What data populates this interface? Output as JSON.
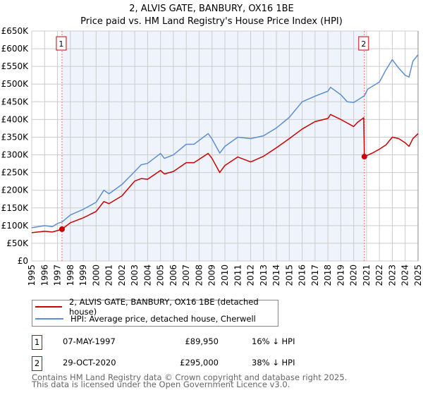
{
  "chart_data": {
    "type": "line",
    "title": "2, ALVIS GATE, BANBURY, OX16 1BE",
    "subtitle": "Price paid vs. HM Land Registry's House Price Index (HPI)",
    "xlim": [
      1995,
      2025
    ],
    "ylim": [
      0,
      650000
    ],
    "x_ticks": [
      "1995",
      "1996",
      "1997",
      "1998",
      "1999",
      "2000",
      "2001",
      "2002",
      "2003",
      "2004",
      "2005",
      "2006",
      "2007",
      "2008",
      "2009",
      "2010",
      "2011",
      "2012",
      "2013",
      "2014",
      "2015",
      "2016",
      "2017",
      "2018",
      "2019",
      "2020",
      "2021",
      "2022",
      "2023",
      "2024",
      "2025"
    ],
    "y_ticks": [
      {
        "v": 0,
        "label": "£0"
      },
      {
        "v": 50000,
        "label": "£50K"
      },
      {
        "v": 100000,
        "label": "£100K"
      },
      {
        "v": 150000,
        "label": "£150K"
      },
      {
        "v": 200000,
        "label": "£200K"
      },
      {
        "v": 250000,
        "label": "£250K"
      },
      {
        "v": 300000,
        "label": "£300K"
      },
      {
        "v": 350000,
        "label": "£350K"
      },
      {
        "v": 400000,
        "label": "£400K"
      },
      {
        "v": 450000,
        "label": "£450K"
      },
      {
        "v": 500000,
        "label": "£500K"
      },
      {
        "v": 550000,
        "label": "£550K"
      },
      {
        "v": 600000,
        "label": "£600K"
      },
      {
        "v": 650000,
        "label": "£650K"
      }
    ],
    "grid": true,
    "series": [
      {
        "name": "2, ALVIS GATE, BANBURY, OX16 1BE (detached house)",
        "color": "#cc0000",
        "points": [
          [
            1995,
            80000
          ],
          [
            1996,
            84000
          ],
          [
            1996.6,
            82000
          ],
          [
            1997,
            86000
          ],
          [
            1997.35,
            89950
          ],
          [
            1998,
            108000
          ],
          [
            1999,
            122000
          ],
          [
            2000,
            140000
          ],
          [
            2000.6,
            168000
          ],
          [
            2001,
            162000
          ],
          [
            2002,
            184000
          ],
          [
            2003,
            226000
          ],
          [
            2003.5,
            233000
          ],
          [
            2004,
            231000
          ],
          [
            2005,
            256000
          ],
          [
            2005.3,
            246000
          ],
          [
            2006,
            253000
          ],
          [
            2007,
            278000
          ],
          [
            2007.6,
            278000
          ],
          [
            2008.7,
            304000
          ],
          [
            2009,
            290000
          ],
          [
            2009.6,
            250000
          ],
          [
            2010,
            270000
          ],
          [
            2011,
            294000
          ],
          [
            2012,
            280000
          ],
          [
            2013,
            296000
          ],
          [
            2014,
            320000
          ],
          [
            2015,
            346000
          ],
          [
            2016,
            373000
          ],
          [
            2017,
            394000
          ],
          [
            2018,
            403000
          ],
          [
            2018.2,
            414000
          ],
          [
            2019,
            400000
          ],
          [
            2020,
            380000
          ],
          [
            2020.3,
            392000
          ],
          [
            2020.78,
            405000
          ],
          [
            2020.83,
            295000
          ],
          [
            2021.5,
            306000
          ],
          [
            2022,
            316000
          ],
          [
            2022.5,
            328000
          ],
          [
            2023,
            350000
          ],
          [
            2023.5,
            346000
          ],
          [
            2024,
            334000
          ],
          [
            2024.3,
            324000
          ],
          [
            2024.6,
            346000
          ],
          [
            2025,
            360000
          ]
        ]
      },
      {
        "name": "HPI: Average price, detached house, Cherwell",
        "color": "#5b8fd1",
        "points": [
          [
            1995,
            94000
          ],
          [
            1996,
            100000
          ],
          [
            1996.6,
            97000
          ],
          [
            1997,
            106000
          ],
          [
            1997.35,
            110000
          ],
          [
            1998,
            130000
          ],
          [
            1999,
            146000
          ],
          [
            2000,
            166000
          ],
          [
            2000.6,
            200000
          ],
          [
            2001,
            190000
          ],
          [
            2002,
            216000
          ],
          [
            2003,
            253000
          ],
          [
            2003.5,
            272000
          ],
          [
            2004,
            276000
          ],
          [
            2005,
            304000
          ],
          [
            2005.3,
            290000
          ],
          [
            2006,
            300000
          ],
          [
            2007,
            330000
          ],
          [
            2007.6,
            330000
          ],
          [
            2008.7,
            360000
          ],
          [
            2009,
            345000
          ],
          [
            2009.6,
            305000
          ],
          [
            2010,
            324000
          ],
          [
            2011,
            350000
          ],
          [
            2012,
            346000
          ],
          [
            2013,
            354000
          ],
          [
            2014,
            376000
          ],
          [
            2015,
            406000
          ],
          [
            2016,
            450000
          ],
          [
            2017,
            466000
          ],
          [
            2018,
            480000
          ],
          [
            2018.2,
            491000
          ],
          [
            2019,
            470000
          ],
          [
            2019.5,
            450000
          ],
          [
            2020,
            448000
          ],
          [
            2020.83,
            467000
          ],
          [
            2021.1,
            486000
          ],
          [
            2022,
            506000
          ],
          [
            2022.5,
            540000
          ],
          [
            2023,
            569000
          ],
          [
            2023.5,
            545000
          ],
          [
            2024,
            525000
          ],
          [
            2024.3,
            520000
          ],
          [
            2024.6,
            565000
          ],
          [
            2025,
            583000
          ]
        ]
      }
    ],
    "annotations": [
      {
        "label": "1",
        "x": 1997.35,
        "y": 89950
      },
      {
        "label": "2",
        "x": 2020.83,
        "y": 295000
      }
    ],
    "shaded_range": [
      1997.35,
      2020.83
    ],
    "legend_placement": "bottom"
  },
  "table": [
    {
      "num": "1",
      "date": "07-MAY-1997",
      "price": "£89,950",
      "hpi": "16% ↓ HPI"
    },
    {
      "num": "2",
      "date": "29-OCT-2020",
      "price": "£295,000",
      "hpi": "38% ↓ HPI"
    }
  ],
  "footer": [
    "Contains HM Land Registry data © Crown copyright and database right 2025.",
    "This data is licensed under the Open Government Licence v3.0."
  ]
}
